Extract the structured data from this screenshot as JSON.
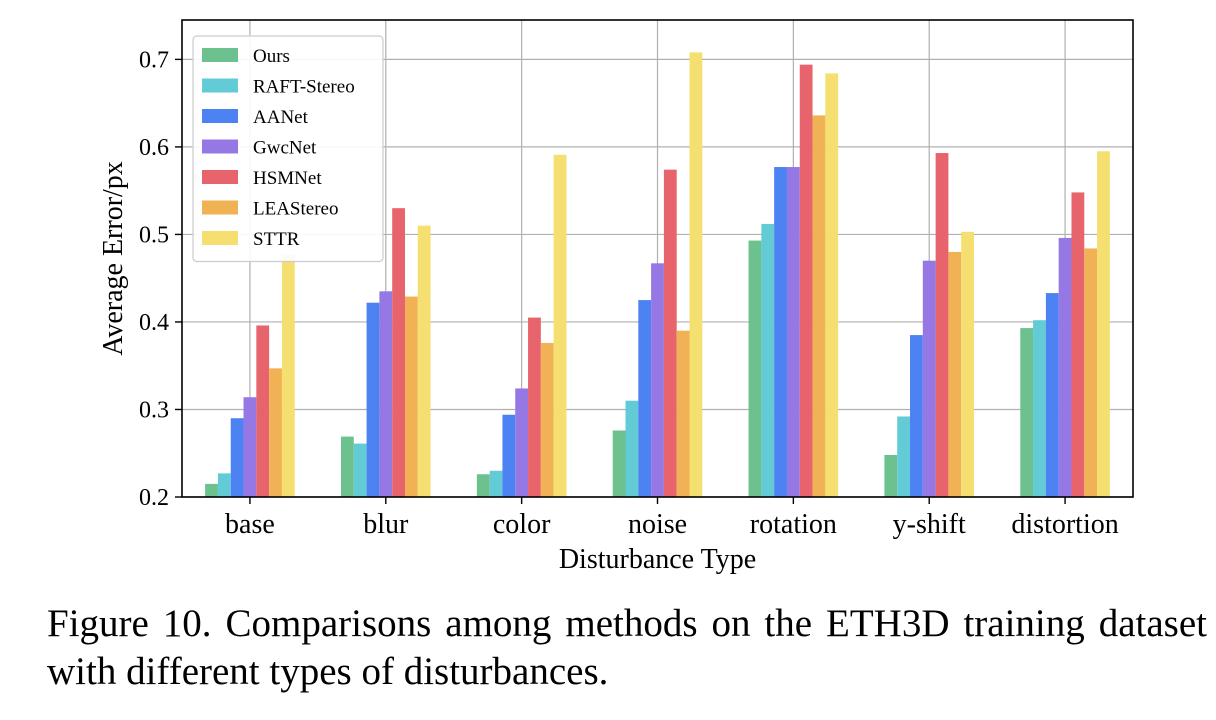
{
  "caption": "Figure 10. Comparisons among methods on the ETH3D training dataset with different types of disturbances.",
  "chart_data": {
    "type": "bar",
    "xlabel": "Disturbance Type",
    "ylabel": "Average Error/px",
    "ylim": [
      0.2,
      0.745
    ],
    "yticks": [
      0.2,
      0.3,
      0.4,
      0.5,
      0.6,
      0.7
    ],
    "grid": true,
    "legend_position": "top-left",
    "categories": [
      "base",
      "blur",
      "color",
      "noise",
      "rotation",
      "y-shift",
      "distortion"
    ],
    "series": [
      {
        "name": "Ours",
        "color": "#6cc18f",
        "values": [
          0.215,
          0.269,
          0.226,
          0.276,
          0.493,
          0.248,
          0.393
        ]
      },
      {
        "name": "RAFT-Stereo",
        "color": "#62cbd6",
        "values": [
          0.227,
          0.261,
          0.23,
          0.31,
          0.512,
          0.292,
          0.402
        ]
      },
      {
        "name": "AANet",
        "color": "#4d82f3",
        "values": [
          0.29,
          0.422,
          0.294,
          0.425,
          0.577,
          0.385,
          0.433
        ]
      },
      {
        "name": "GwcNet",
        "color": "#9578e3",
        "values": [
          0.314,
          0.435,
          0.324,
          0.467,
          0.577,
          0.47,
          0.496
        ]
      },
      {
        "name": "HSMNet",
        "color": "#e7646d",
        "values": [
          0.396,
          0.53,
          0.405,
          0.574,
          0.694,
          0.593,
          0.548
        ]
      },
      {
        "name": "LEAStereo",
        "color": "#f0b254",
        "values": [
          0.347,
          0.429,
          0.376,
          0.39,
          0.636,
          0.48,
          0.484
        ]
      },
      {
        "name": "STTR",
        "color": "#f4df70",
        "values": [
          0.477,
          0.51,
          0.591,
          0.708,
          0.684,
          0.503,
          0.595
        ]
      }
    ]
  }
}
